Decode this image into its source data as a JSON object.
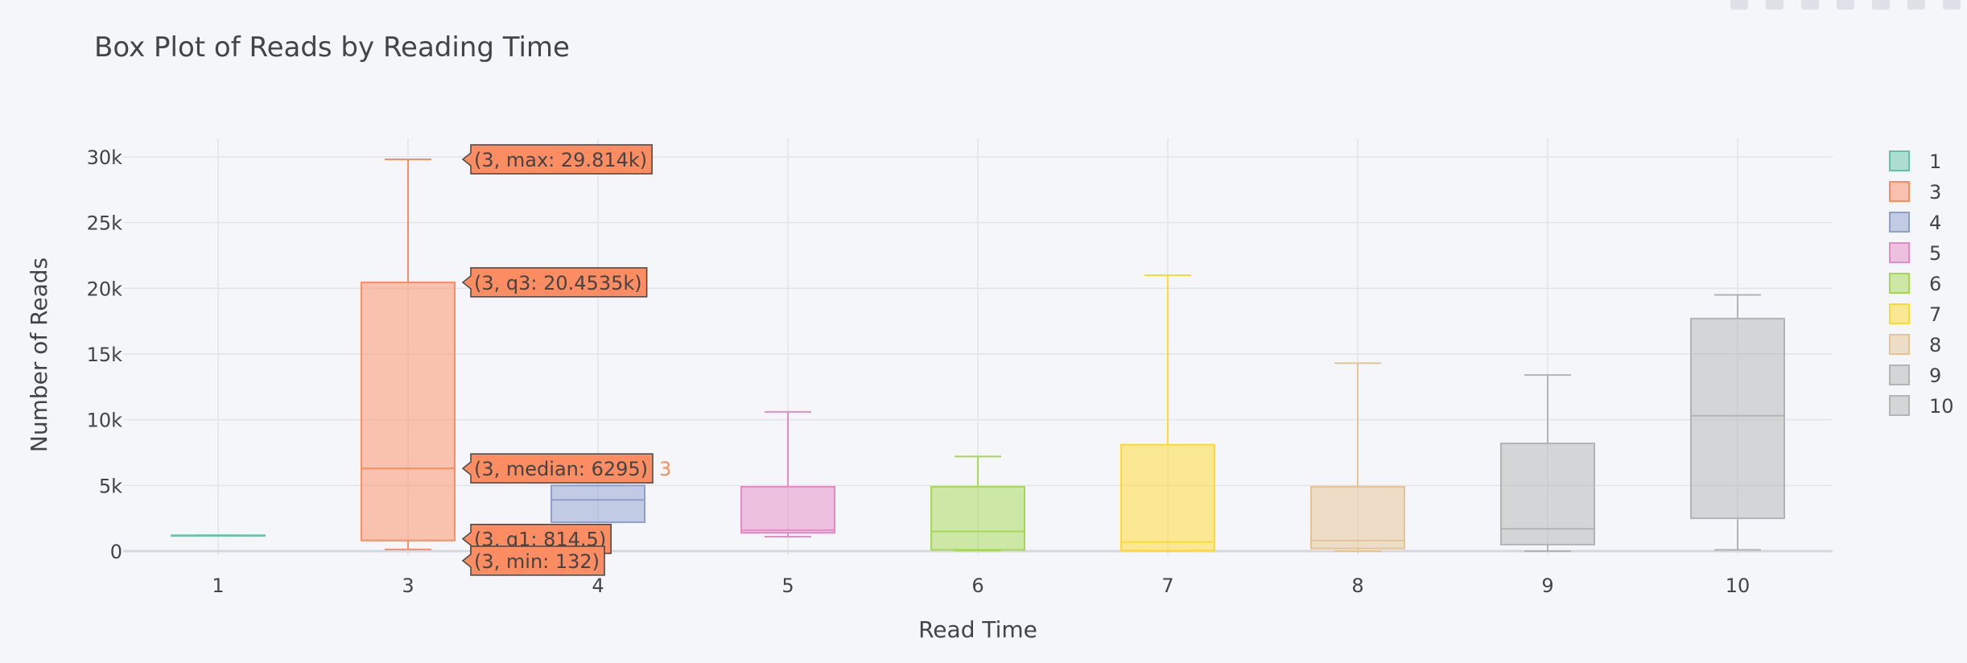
{
  "chart_data": {
    "type": "box",
    "title": "Box Plot of Reads by Reading Time",
    "xlabel": "Read Time",
    "ylabel": "Number of Reads",
    "ylim": [
      -1500,
      31000
    ],
    "yticks": [
      {
        "value": 0,
        "label": "0"
      },
      {
        "value": 5000,
        "label": "5k"
      },
      {
        "value": 10000,
        "label": "10k"
      },
      {
        "value": 15000,
        "label": "15k"
      },
      {
        "value": 20000,
        "label": "20k"
      },
      {
        "value": 25000,
        "label": "25k"
      },
      {
        "value": 30000,
        "label": "30k"
      }
    ],
    "categories": [
      "1",
      "3",
      "4",
      "5",
      "6",
      "7",
      "8",
      "9",
      "10"
    ],
    "grid": true,
    "legend_position": "right",
    "series": [
      {
        "name": "1",
        "color": "#66c2a5",
        "min": 1200,
        "q1": 1200,
        "median": 1200,
        "q3": 1200,
        "max": 1200
      },
      {
        "name": "3",
        "color": "#fc8d62",
        "min": 132,
        "q1": 814.5,
        "median": 6295,
        "q3": 20453.5,
        "max": 29814
      },
      {
        "name": "4",
        "color": "#8da0cb",
        "min": 2200,
        "q1": 2200,
        "median": 3900,
        "q3": 5000,
        "max": 5000
      },
      {
        "name": "5",
        "color": "#e78ac3",
        "min": 1100,
        "q1": 1400,
        "median": 1600,
        "q3": 4900,
        "max": 10600
      },
      {
        "name": "6",
        "color": "#a6d854",
        "min": 50,
        "q1": 100,
        "median": 1500,
        "q3": 4900,
        "max": 7200
      },
      {
        "name": "7",
        "color": "#ffd92f",
        "min": 0,
        "q1": 50,
        "median": 700,
        "q3": 8100,
        "max": 21000
      },
      {
        "name": "8",
        "color": "#e5c494",
        "min": 0,
        "q1": 200,
        "median": 800,
        "q3": 4900,
        "max": 14300
      },
      {
        "name": "9",
        "color": "#b3b3b3",
        "min": 0,
        "q1": 500,
        "median": 1700,
        "q3": 8200,
        "max": 13400
      },
      {
        "name": "10",
        "color": "#b3b3b3",
        "min": 100,
        "q1": 2500,
        "median": 10300,
        "q3": 17700,
        "max": 19500
      }
    ],
    "hover": {
      "category": "3",
      "trace_label": "3",
      "labels": [
        {
          "stat": "max",
          "text": "(3, max: 29.814k)"
        },
        {
          "stat": "q3",
          "text": "(3, q3: 20.4535k)"
        },
        {
          "stat": "median",
          "text": "(3, median: 6295)"
        },
        {
          "stat": "q1",
          "text": "(3, q1: 814.5)"
        },
        {
          "stat": "min",
          "text": "(3, min: 132)"
        }
      ]
    }
  }
}
